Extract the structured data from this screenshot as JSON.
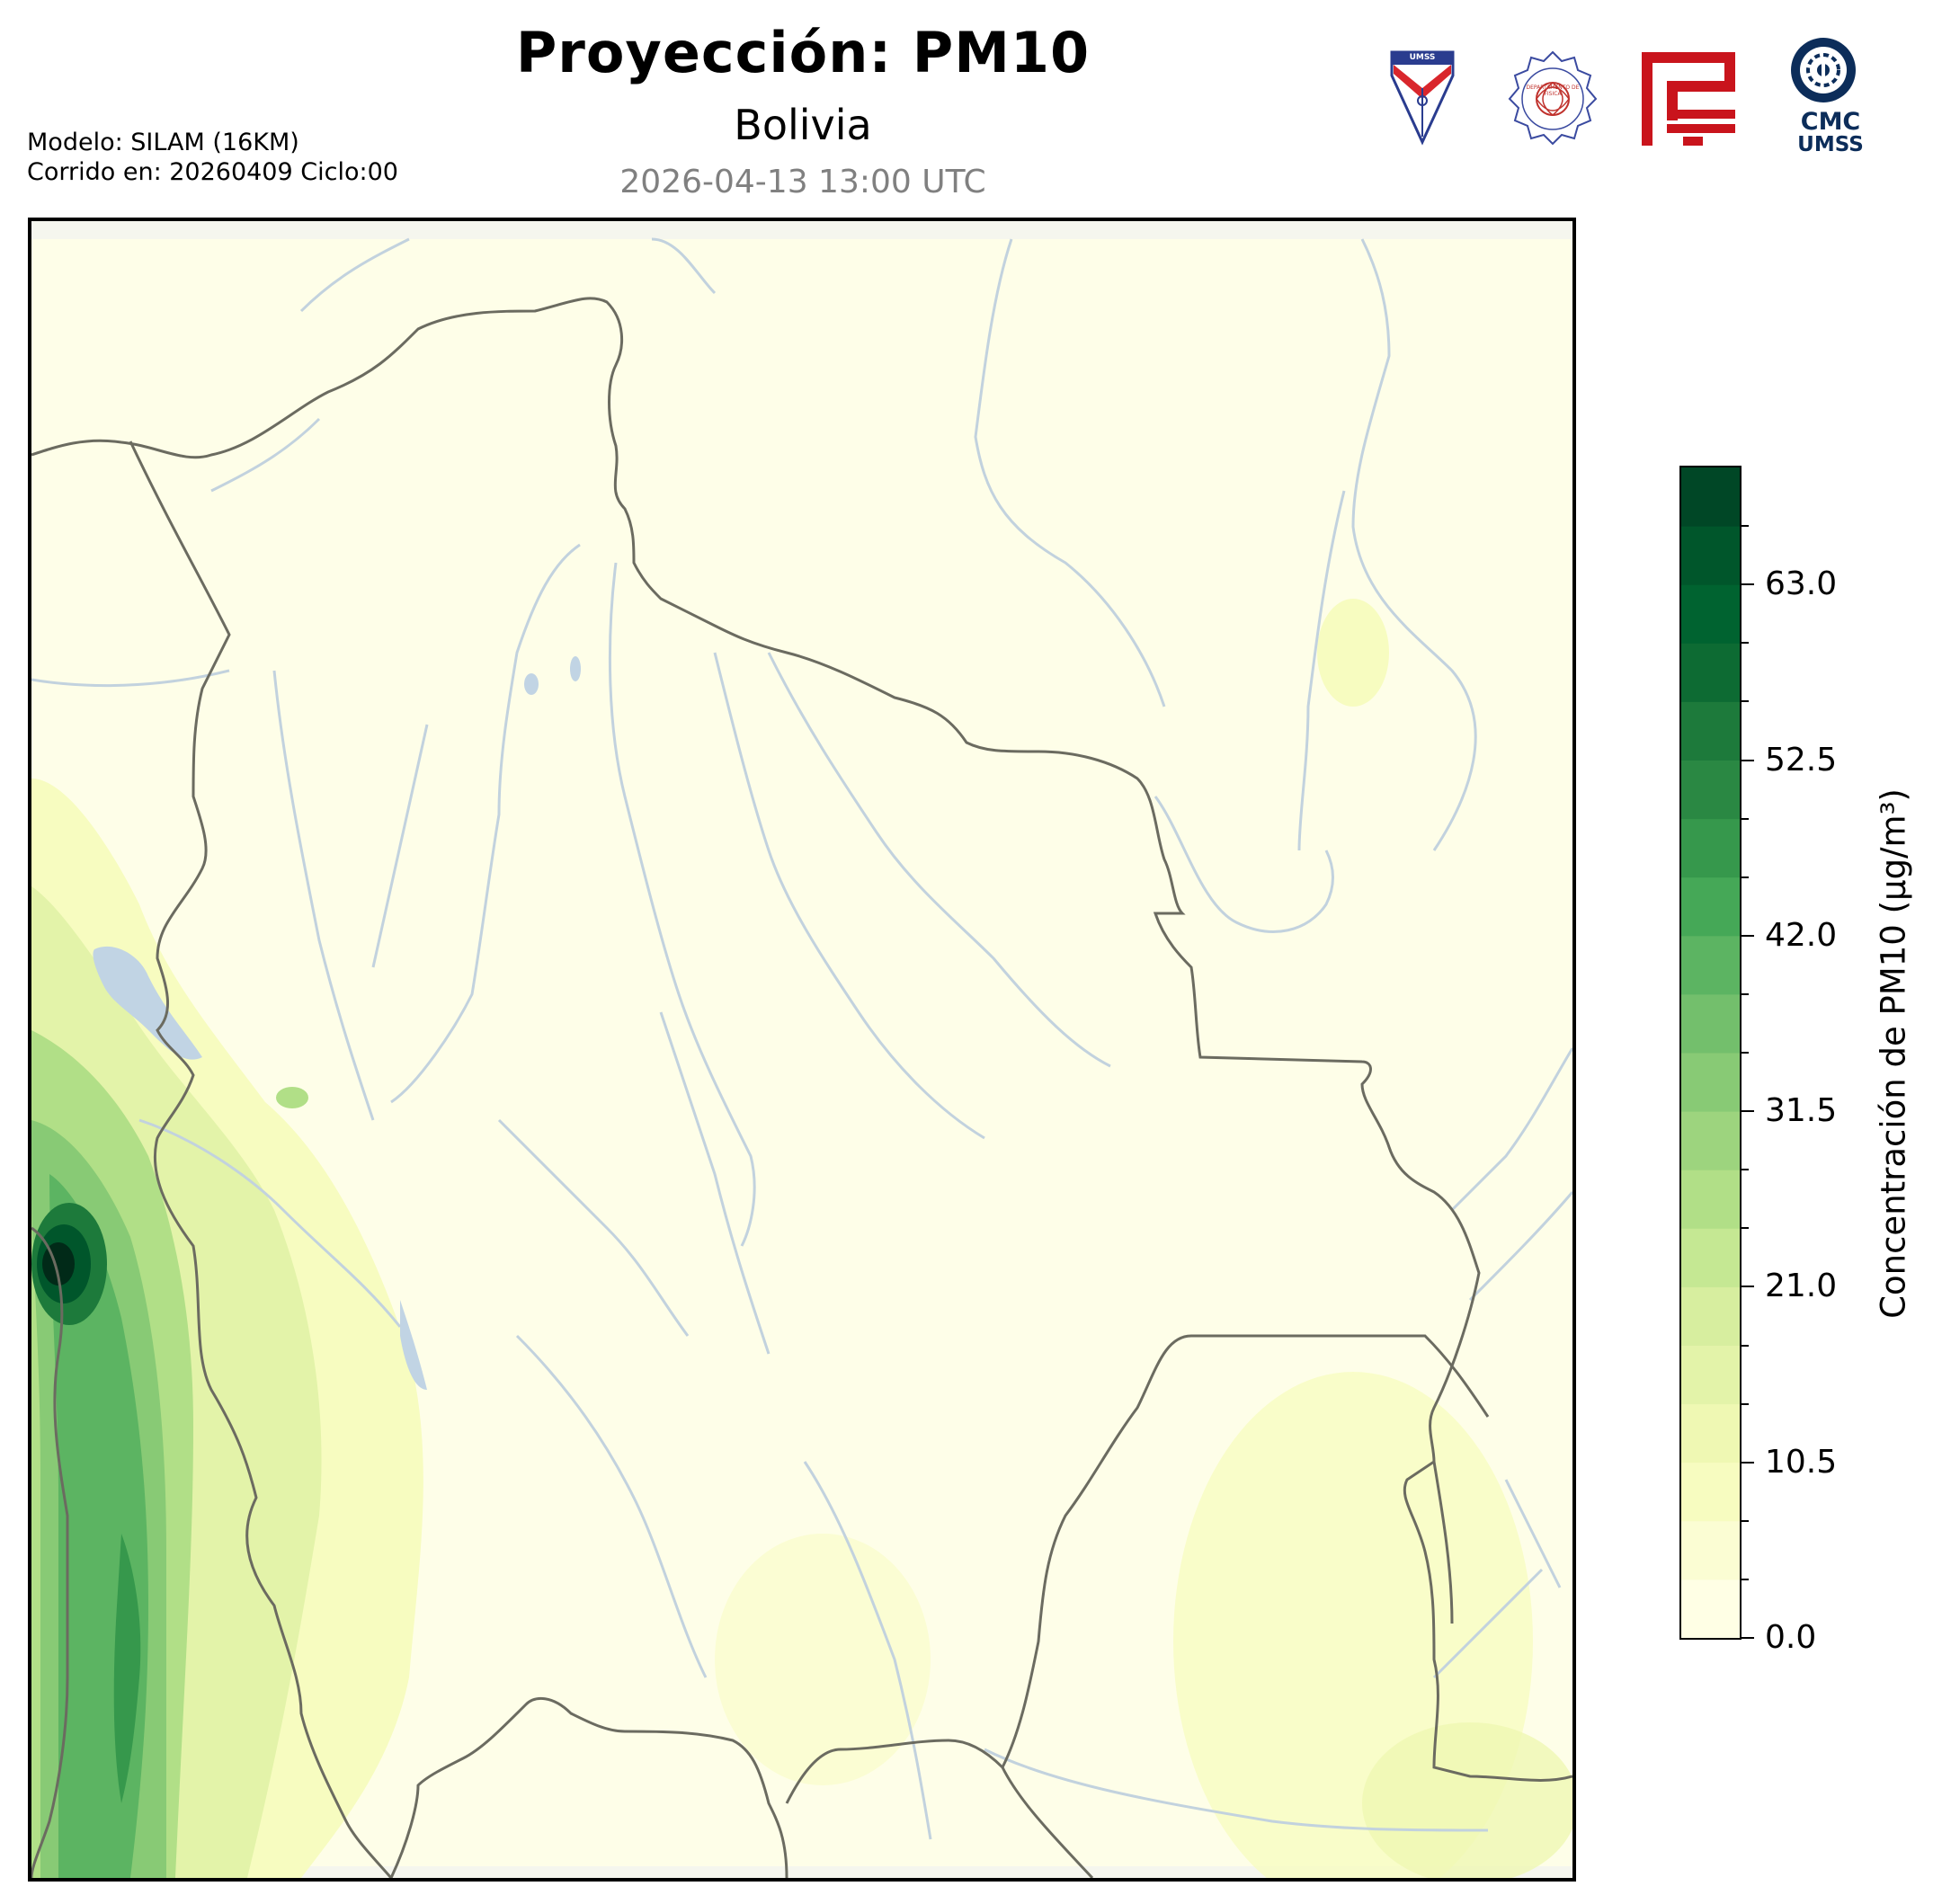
{
  "header": {
    "title": "Proyección: PM10",
    "subtitle": "Bolivia",
    "timestamp": "2026-04-13 13:00 UTC",
    "model_line": "Modelo: SILAM (16KM)",
    "run_line": "Corrido en: 20260409 Ciclo:00"
  },
  "logos": [
    {
      "name": "umss-shield-logo",
      "text": "UMSS"
    },
    {
      "name": "departamento-de-fisica-seal",
      "text": "DEPARTAMENTO DE FISICA"
    },
    {
      "name": "red-geometric-logo"
    },
    {
      "name": "cmc-umss-logo",
      "line1": "CMC",
      "line2": "UMSS"
    }
  ],
  "colorbar": {
    "label": "Concentración de PM10 (µg/m³)",
    "min": 0,
    "max": 70,
    "tick_labels": [
      "0.0",
      "10.5",
      "21.0",
      "31.5",
      "42.0",
      "52.5",
      "63.0"
    ],
    "tick_values": [
      0,
      10.5,
      21,
      31.5,
      42,
      52.5,
      63
    ],
    "level_step": 3.5,
    "colors": [
      "#ffffe5",
      "#fbfdd3",
      "#f7fcc0",
      "#eff8b3",
      "#e3f3a9",
      "#d7ee9f",
      "#c5e893",
      "#b1df87",
      "#9dd47e",
      "#88ca75",
      "#73bf6c",
      "#5cb462",
      "#45a857",
      "#36984c",
      "#2a8843",
      "#1d7a3b",
      "#0d6b33",
      "#006330",
      "#00562b",
      "#004726"
    ]
  },
  "colors": {
    "border": "#6b6b60",
    "river": "#c2d2de",
    "lake": "#c1d4e4",
    "background_fill": "#fefee8"
  }
}
